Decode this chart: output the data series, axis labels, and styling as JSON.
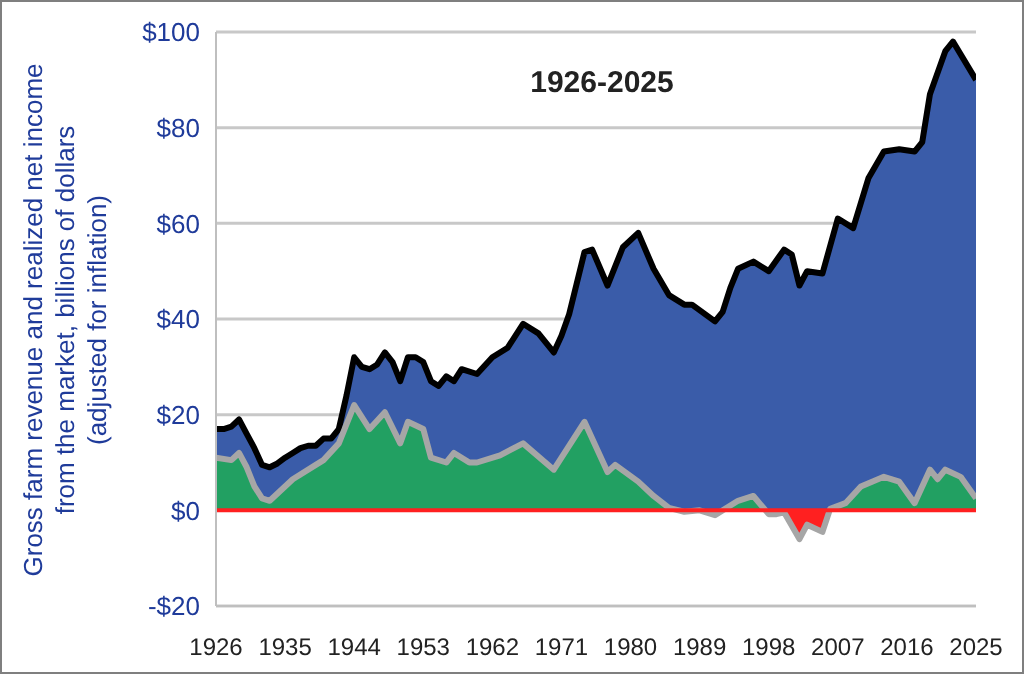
{
  "chart_data": {
    "type": "area",
    "title": "1926-2025",
    "ylabel": "Gross farm revenue and realized net income from the market, billions of dollars (adjusted for inflation)",
    "xlim": [
      1926,
      2025
    ],
    "xticks": [
      1926,
      1935,
      1944,
      1953,
      1962,
      1971,
      1980,
      1989,
      1998,
      2007,
      2016,
      2025
    ],
    "ylim": [
      -20,
      100
    ],
    "yticks": [
      {
        "value": -20,
        "label": "-$20"
      },
      {
        "value": 0,
        "label": "$0"
      },
      {
        "value": 20,
        "label": "$20"
      },
      {
        "value": 40,
        "label": "$40"
      },
      {
        "value": 60,
        "label": "$60"
      },
      {
        "value": 80,
        "label": "$80"
      },
      {
        "value": 100,
        "label": "$100"
      }
    ],
    "grid": "y",
    "ref_lines": [
      {
        "axis": "y",
        "value": 0,
        "color": "#ff2020"
      }
    ],
    "series": [
      {
        "color": "#3a5ca9",
        "x": [
          1926,
          1927,
          1928,
          1929,
          1930,
          1931,
          1932,
          1933,
          1934,
          1935,
          1936,
          1937,
          1938,
          1939,
          1940,
          1941,
          1942,
          1943,
          1944,
          1945,
          1946,
          1947,
          1948,
          1949,
          1950,
          1951,
          1952,
          1953,
          1954,
          1955,
          1956,
          1957,
          1958,
          1960,
          1962,
          1964,
          1966,
          1968,
          1970,
          1971,
          1972,
          1974,
          1975,
          1977,
          1979,
          1981,
          1983,
          1985,
          1987,
          1988,
          1991,
          1992,
          1993,
          1994,
          1996,
          1998,
          2000,
          2001,
          2002,
          2003,
          2005,
          2007,
          2009,
          2011,
          2013,
          2015,
          2017,
          2018,
          2019,
          2021,
          2022,
          2025
        ],
        "values": [
          17,
          17,
          17.5,
          19,
          16,
          13,
          9.5,
          9,
          9.8,
          11,
          12,
          13,
          13.5,
          13.5,
          15,
          15,
          17,
          24,
          32,
          30,
          29.5,
          30.5,
          33,
          31,
          27,
          32,
          32,
          31,
          27,
          26,
          28,
          27,
          29.5,
          28.5,
          32,
          34,
          39,
          37,
          33,
          36.5,
          41,
          54,
          54.5,
          47,
          55,
          58,
          50.5,
          45,
          43,
          43,
          39.5,
          41.5,
          46.5,
          50.5,
          52,
          50,
          54.5,
          53.5,
          47,
          50,
          49.5,
          61,
          59,
          69.5,
          75,
          75.5,
          75,
          77,
          87,
          96,
          98,
          90
        ]
      },
      {
        "color": "#22a062",
        "x": [
          1926,
          1928,
          1929,
          1930,
          1931,
          1932,
          1933,
          1936,
          1939,
          1940,
          1942,
          1944,
          1946,
          1948,
          1950,
          1951,
          1953,
          1954,
          1956,
          1957,
          1959,
          1960,
          1963,
          1966,
          1970,
          1974,
          1977,
          1978,
          1981,
          1983,
          1985,
          1987,
          1989,
          1991,
          1994,
          1996,
          1998,
          1999,
          2000,
          2002,
          2003,
          2005,
          2006,
          2008,
          2010,
          2013,
          2015,
          2017,
          2019,
          2020,
          2021,
          2023,
          2025
        ],
        "values": [
          11,
          10.5,
          12,
          9,
          5,
          2.5,
          2,
          6.5,
          9.5,
          10.5,
          14,
          22,
          17,
          20.5,
          14,
          18.5,
          17,
          11,
          10,
          12,
          10,
          10,
          11.5,
          14,
          8.5,
          18.5,
          8,
          9.5,
          6,
          3,
          0.5,
          -0.3,
          0,
          -1,
          2,
          3,
          -0.8,
          -0.8,
          -0.4,
          -6,
          -3,
          -4.5,
          0.3,
          1.5,
          5,
          7,
          6,
          1.5,
          8.5,
          6.5,
          8.5,
          7,
          2.5
        ]
      }
    ]
  }
}
